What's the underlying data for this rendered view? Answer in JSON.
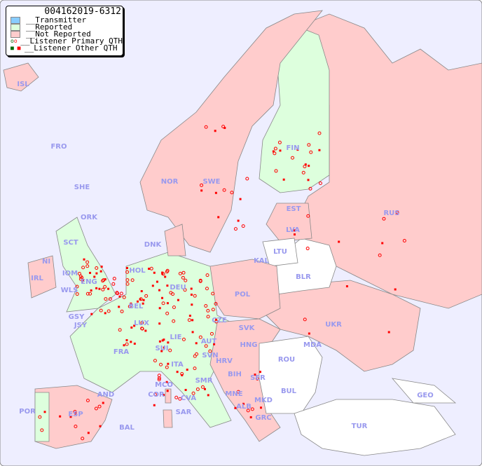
{
  "legend": {
    "title": "004162019-6312",
    "items": [
      "__Transmitter",
      "__Reported",
      "__Not Reported",
      "__Listener Primary QTH",
      "__Listener Other QTH"
    ]
  },
  "colors": {
    "sea": "#eeeeff",
    "transmitter": "#88ccff",
    "reported": "#ddffdd",
    "not_reported": "#ffcccc",
    "unlisted": "#ffffff",
    "primary_qth": "#ff0000",
    "reported_primary_qth": "#006600"
  },
  "countries": {
    "reported": [
      "FIN",
      "ENG",
      "SCT",
      "WLS",
      "NI",
      "IOM",
      "HOL",
      "BEL",
      "LUX",
      "DEU",
      "CZE",
      "FRA",
      "SUI",
      "LIE",
      "AUT",
      "ITA",
      "SVN",
      "POR",
      "SMR",
      "CVA",
      "MCO",
      "GSY",
      "JSY"
    ],
    "not_reported": [
      "ISL",
      "NOR",
      "SWE",
      "DNK",
      "IRL",
      "EST",
      "LVA",
      "RUS",
      "POL",
      "SVK",
      "HNG",
      "UKR",
      "ESP",
      "HRV",
      "BIH",
      "SER",
      "MNE",
      "ALB",
      "MKD",
      "GRC",
      "AND",
      "COR",
      "SAR",
      "BAL",
      "KAL",
      "FRO",
      "SHE",
      "ORK"
    ],
    "unlisted": [
      "LTU",
      "BLR",
      "MDA",
      "ROU",
      "BUL",
      "TUR",
      "GEO"
    ]
  },
  "labels": [
    "ISL",
    "FRO",
    "SHE",
    "ORK",
    "NOR",
    "SWE",
    "FIN",
    "EST",
    "RUS",
    "LVA",
    "LTU",
    "KAL",
    "BLR",
    "DNK",
    "SCT",
    "NI",
    "IRL",
    "IOM",
    "WLS",
    "ENG",
    "HOL",
    "BEL",
    "DEU",
    "POL",
    "GSY",
    "JSY",
    "LUX",
    "CZE",
    "SVK",
    "UKR",
    "MDA",
    "FRA",
    "SUI",
    "LIE",
    "AUT",
    "HNG",
    "SVN",
    "HRV",
    "ROU",
    "BIH",
    "SER",
    "ITA",
    "SMR",
    "MCO",
    "COR",
    "CVA",
    "MNE",
    "BUL",
    "GEO",
    "AND",
    "POR",
    "ESP",
    "BAL",
    "SAR",
    "ALB",
    "MKD",
    "GRC",
    "TUR"
  ]
}
